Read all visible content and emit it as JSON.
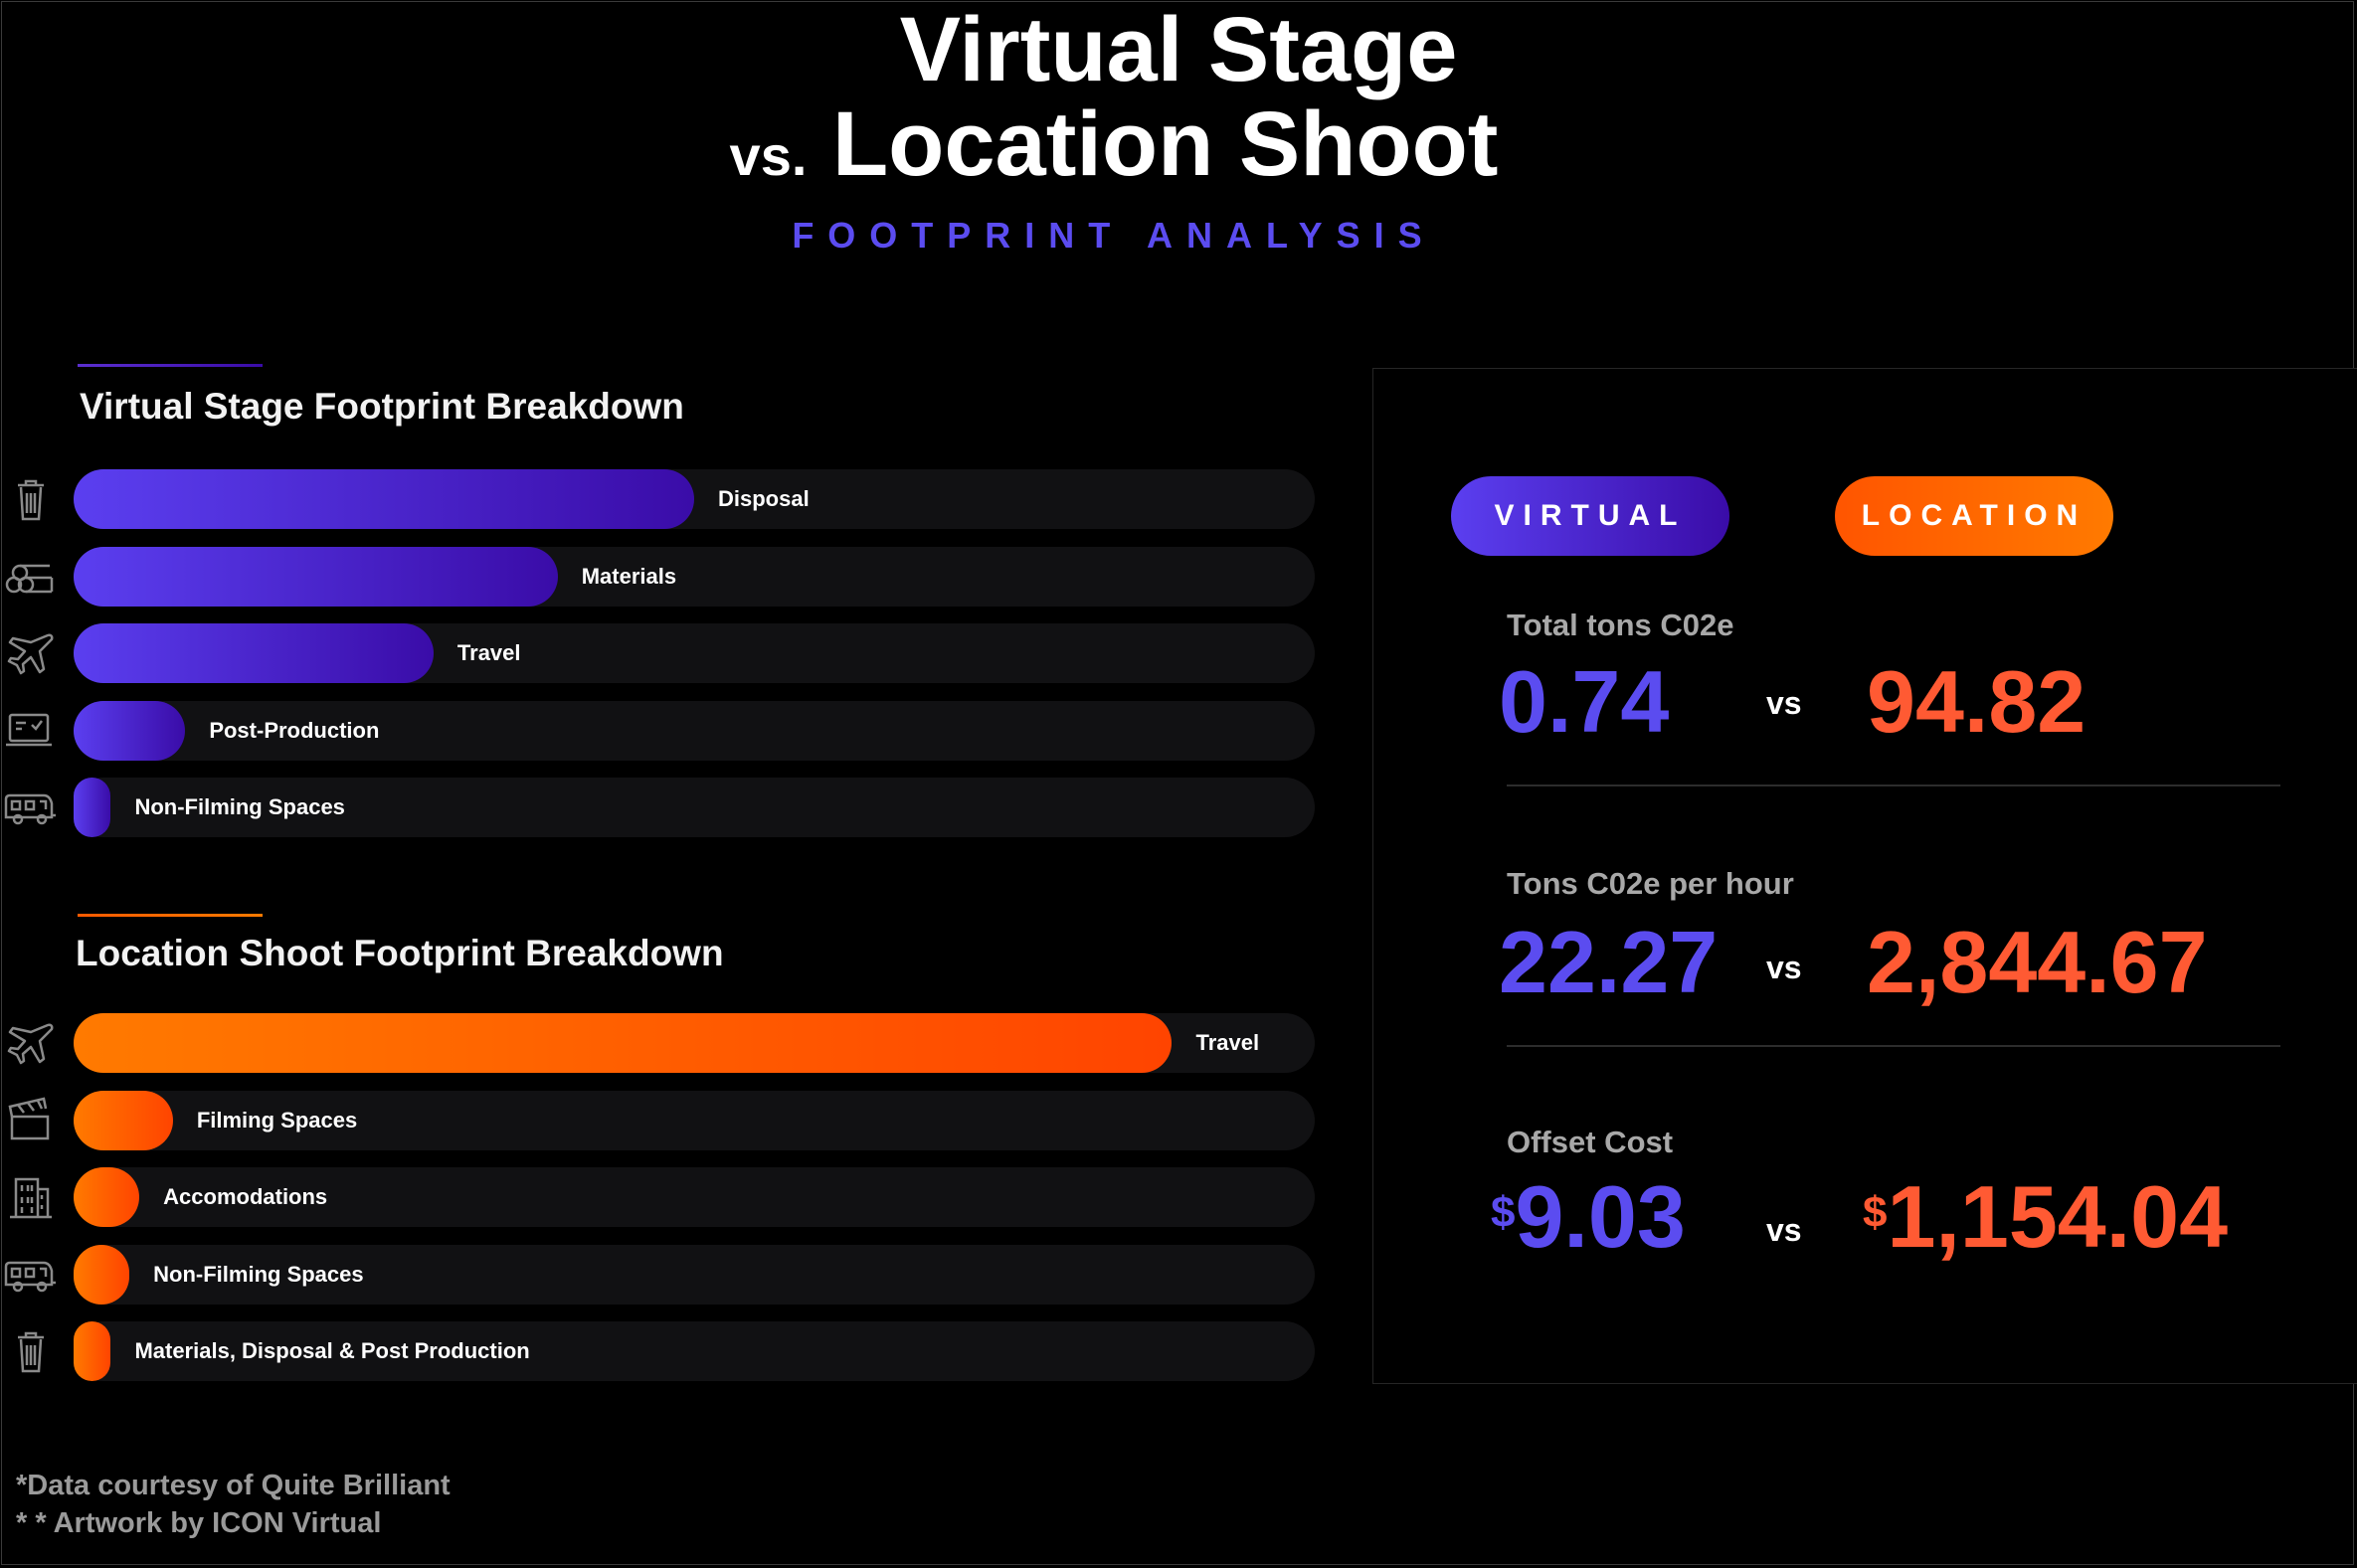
{
  "header": {
    "title_line1": "Virtual Stage",
    "title_vs": "vs.",
    "title_line2": "Location Shoot",
    "subtitle": "FOOTPRINT ANALYSIS"
  },
  "colors": {
    "virtual": "#5b4cf0",
    "location": "#ff6a1a",
    "track": "#111113"
  },
  "chart_data": [
    {
      "type": "bar",
      "orientation": "horizontal",
      "title": "Virtual Stage Footprint Breakdown",
      "categories": [
        "Disposal",
        "Materials",
        "Travel",
        "Post-Production",
        "Non-Filming Spaces"
      ],
      "values": [
        0.5,
        0.39,
        0.29,
        0.09,
        0.03
      ],
      "value_unit": "share of track",
      "icons": [
        "trash-icon",
        "lumber-icon",
        "airplane-icon",
        "computer-icon",
        "trailer-icon"
      ]
    },
    {
      "type": "bar",
      "orientation": "horizontal",
      "title": "Location Shoot Footprint Breakdown",
      "categories": [
        "Travel",
        "Filming Spaces",
        "Accomodations",
        "Non-Filming Spaces",
        "Materials, Disposal & Post Production"
      ],
      "values": [
        0.885,
        0.08,
        0.053,
        0.045,
        0.03
      ],
      "value_unit": "share of track",
      "icons": [
        "airplane-icon",
        "clapperboard-icon",
        "building-icon",
        "trailer-icon",
        "trash-icon"
      ]
    }
  ],
  "panel": {
    "virtual_label": "VIRTUAL",
    "location_label": "LOCATION",
    "vs": "vs",
    "metrics": [
      {
        "label": "Total tons C02e",
        "virtual": "0.74",
        "location": "94.82"
      },
      {
        "label": "Tons C02e per hour",
        "virtual": "22.27",
        "location": "2,844.67"
      },
      {
        "label": "Offset Cost",
        "currency": "$",
        "virtual": "9.03",
        "location": "1,154.04"
      }
    ]
  },
  "footnotes": {
    "line1": "*Data courtesy of Quite Brilliant",
    "line2": "* *  Artwork by ICON Virtual"
  }
}
